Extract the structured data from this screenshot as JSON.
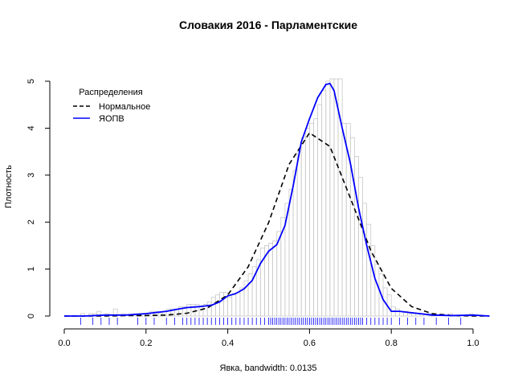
{
  "chart_data": {
    "type": "histogram-density",
    "title": "Словакия 2016 - Парламентские",
    "xlabel": "Явка, bandwidth: 0.0135",
    "ylabel": "Плотность",
    "xlim": [
      0.0,
      1.04
    ],
    "ylim": [
      0,
      5
    ],
    "x_ticks": [
      "0.0",
      "0.2",
      "0.4",
      "0.6",
      "0.8",
      "1.0"
    ],
    "y_ticks": [
      "0",
      "1",
      "2",
      "3",
      "4",
      "5"
    ],
    "histogram": {
      "bin_width": 0.01,
      "bin_starts": [
        0.0,
        0.01,
        0.02,
        0.03,
        0.04,
        0.05,
        0.06,
        0.07,
        0.08,
        0.09,
        0.1,
        0.11,
        0.12,
        0.13,
        0.14,
        0.15,
        0.16,
        0.17,
        0.18,
        0.19,
        0.2,
        0.21,
        0.22,
        0.23,
        0.24,
        0.25,
        0.26,
        0.27,
        0.28,
        0.29,
        0.3,
        0.31,
        0.32,
        0.33,
        0.34,
        0.35,
        0.36,
        0.37,
        0.38,
        0.39,
        0.4,
        0.41,
        0.42,
        0.43,
        0.44,
        0.45,
        0.46,
        0.47,
        0.48,
        0.49,
        0.5,
        0.51,
        0.52,
        0.53,
        0.54,
        0.55,
        0.56,
        0.57,
        0.58,
        0.59,
        0.6,
        0.61,
        0.62,
        0.63,
        0.64,
        0.65,
        0.66,
        0.67,
        0.68,
        0.69,
        0.7,
        0.71,
        0.72,
        0.73,
        0.74,
        0.75,
        0.76,
        0.77,
        0.78,
        0.79,
        0.8,
        0.81,
        0.82,
        0.83,
        0.84,
        0.85,
        0.86,
        0.87,
        0.88,
        0.89,
        0.9,
        0.91,
        0.92,
        0.93,
        0.94,
        0.95,
        0.96,
        0.97,
        0.98,
        0.99,
        1.0
      ],
      "densities": [
        0,
        0,
        0,
        0,
        0.05,
        0,
        0.05,
        0.05,
        0.1,
        0,
        0.05,
        0,
        0.15,
        0,
        0.05,
        0,
        0,
        0.05,
        0.05,
        0.05,
        0.05,
        0.1,
        0.1,
        0.05,
        0.1,
        0.15,
        0.15,
        0.15,
        0.2,
        0.2,
        0.25,
        0.25,
        0.25,
        0.2,
        0.25,
        0.3,
        0.4,
        0.45,
        0.5,
        0.5,
        0.4,
        0.45,
        0.5,
        0.6,
        0.75,
        0.9,
        1.05,
        1.2,
        1.45,
        1.5,
        1.55,
        1.6,
        1.8,
        2.1,
        2.4,
        2.7,
        3.1,
        3.5,
        3.8,
        4.0,
        4.1,
        4.2,
        4.5,
        4.8,
        5.0,
        5.05,
        5.05,
        5.05,
        4.1,
        4.1,
        3.8,
        3.4,
        2.95,
        2.4,
        1.95,
        1.5,
        1.1,
        0.9,
        0.6,
        0.45,
        0.2,
        0.15,
        0.1,
        0.1,
        0.05,
        0.05,
        0.05,
        0.05,
        0,
        0.05,
        0.05,
        0,
        0,
        0,
        0.05,
        0,
        0,
        0,
        0,
        0.05,
        0
      ]
    },
    "series": [
      {
        "name": "Нормальное",
        "style": "dashed",
        "color": "#000000",
        "x": [
          0.0,
          0.05,
          0.1,
          0.15,
          0.2,
          0.25,
          0.3,
          0.35,
          0.4,
          0.45,
          0.5,
          0.55,
          0.6,
          0.65,
          0.7,
          0.75,
          0.8,
          0.85,
          0.9,
          0.95,
          1.0,
          1.04
        ],
        "y": [
          0.0,
          0.0,
          0.0,
          0.01,
          0.01,
          0.02,
          0.06,
          0.17,
          0.45,
          1.05,
          1.99,
          3.23,
          3.9,
          3.61,
          2.51,
          1.39,
          0.59,
          0.2,
          0.05,
          0.01,
          0.0,
          0.0
        ]
      },
      {
        "name": "ЯОПВ",
        "style": "solid",
        "color": "#0000ff",
        "x": [
          0.0,
          0.05,
          0.1,
          0.15,
          0.2,
          0.25,
          0.28,
          0.3,
          0.33,
          0.36,
          0.38,
          0.4,
          0.42,
          0.44,
          0.46,
          0.48,
          0.5,
          0.52,
          0.54,
          0.56,
          0.58,
          0.6,
          0.62,
          0.64,
          0.65,
          0.66,
          0.68,
          0.7,
          0.72,
          0.74,
          0.76,
          0.78,
          0.8,
          0.82,
          0.85,
          0.9,
          0.95,
          1.0,
          1.04
        ],
        "y": [
          0.0,
          0.0,
          0.02,
          0.02,
          0.05,
          0.1,
          0.15,
          0.18,
          0.2,
          0.23,
          0.3,
          0.43,
          0.48,
          0.58,
          0.76,
          1.12,
          1.38,
          1.52,
          1.93,
          2.77,
          3.71,
          4.2,
          4.65,
          4.93,
          4.95,
          4.8,
          4.0,
          3.25,
          2.3,
          1.5,
          0.8,
          0.35,
          0.1,
          0.1,
          0.07,
          0.02,
          0.01,
          0.02,
          0.0
        ]
      }
    ],
    "legend": {
      "title": "Распределения",
      "position": "top-left",
      "entries": [
        "Нормальное",
        "ЯОПВ"
      ]
    },
    "rug": {
      "color": "#0000ff",
      "x": [
        0.04,
        0.07,
        0.09,
        0.11,
        0.13,
        0.18,
        0.2,
        0.22,
        0.25,
        0.27,
        0.29,
        0.3,
        0.31,
        0.32,
        0.33,
        0.34,
        0.35,
        0.36,
        0.37,
        0.38,
        0.39,
        0.4,
        0.41,
        0.42,
        0.43,
        0.44,
        0.45,
        0.46,
        0.47,
        0.48,
        0.49,
        0.5,
        0.505,
        0.51,
        0.515,
        0.52,
        0.525,
        0.53,
        0.535,
        0.54,
        0.545,
        0.55,
        0.555,
        0.56,
        0.565,
        0.57,
        0.575,
        0.58,
        0.585,
        0.59,
        0.595,
        0.6,
        0.605,
        0.61,
        0.615,
        0.62,
        0.625,
        0.63,
        0.635,
        0.64,
        0.645,
        0.65,
        0.655,
        0.66,
        0.665,
        0.67,
        0.675,
        0.68,
        0.685,
        0.69,
        0.695,
        0.7,
        0.705,
        0.71,
        0.715,
        0.72,
        0.725,
        0.73,
        0.74,
        0.75,
        0.76,
        0.77,
        0.78,
        0.79,
        0.8,
        0.82,
        0.84,
        0.86,
        0.88,
        0.91,
        0.94,
        0.97
      ]
    }
  }
}
